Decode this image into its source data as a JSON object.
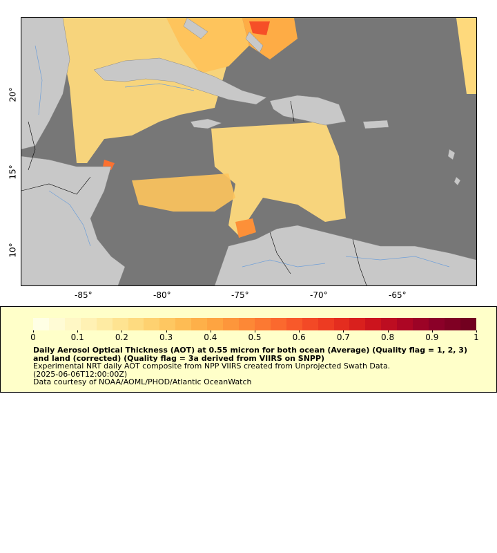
{
  "map": {
    "lon_ticks": [
      "-85°",
      "-80°",
      "-75°",
      "-70°",
      "-65°"
    ],
    "lat_ticks": [
      "20°",
      "15°",
      "10°"
    ],
    "colors": {
      "no_data": "#777777",
      "land": "#c8c8c8",
      "rivers": "#6f9fd8",
      "borders": "#000000"
    }
  },
  "colorbar": {
    "ticks": [
      "0",
      "0.1",
      "0.2",
      "0.3",
      "0.4",
      "0.5",
      "0.6",
      "0.7",
      "0.8",
      "0.9",
      "1"
    ],
    "colors": [
      "#ffffe5",
      "#fff7c4",
      "#feeaa0",
      "#fed97c",
      "#fec45c",
      "#feac45",
      "#fd9038",
      "#fc7130",
      "#f64f27",
      "#e8311f",
      "#d0161c",
      "#b00624",
      "#8c0028",
      "#72001f"
    ]
  },
  "legend": {
    "title": "Daily Aerosol Optical Thickness (AOT) at 0.55 micron for both ocean (Average) (Quality flag = 1, 2, 3) and land (corrected) (Quality flag = 3a derived from VIIRS on SNPP)",
    "line1": "Experimental NRT daily AOT composite from NPP VIIRS created from Unprojected Swath Data.",
    "line2": "(2025-06-06T12:00:00Z)",
    "line3": "Data courtesy of NOAA/AOML/PHOD/Atlantic OceanWatch"
  }
}
